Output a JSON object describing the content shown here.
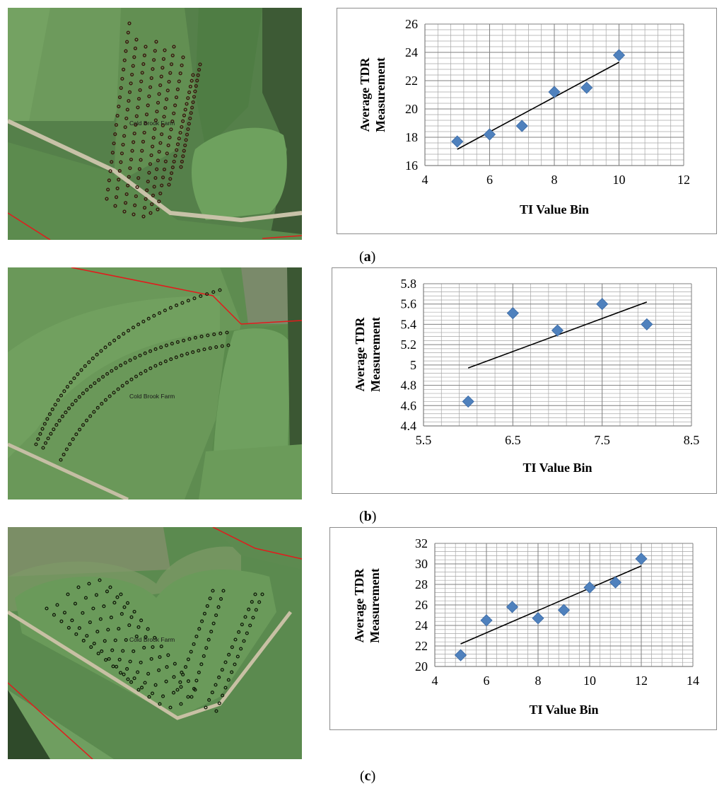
{
  "map_label": "Cold Brook Farm",
  "panel_labels": [
    "a",
    "b",
    "c"
  ],
  "colors": {
    "marker": "#4f81bd",
    "trend": "#000000",
    "grid": "#a6a6a6",
    "field": "#5a8a4e",
    "boundary": "#e31a1c"
  },
  "chart_data": [
    {
      "type": "scatter",
      "title": "",
      "xlabel": "TI Value Bin",
      "ylabel_lines": [
        "Average TDR",
        "Measurement"
      ],
      "xlim": [
        4,
        12
      ],
      "ylim": [
        16,
        26
      ],
      "xticks": [
        "4",
        "6",
        "8",
        "10",
        "12"
      ],
      "yticks": [
        "16",
        "18",
        "20",
        "22",
        "24",
        "26"
      ],
      "series": [
        {
          "x": [
            5,
            6,
            7,
            8,
            9,
            10
          ],
          "y": [
            17.7,
            18.2,
            18.8,
            21.2,
            21.5,
            23.8
          ]
        }
      ],
      "trendline": {
        "x": [
          5,
          10
        ],
        "y": [
          17.15,
          23.3
        ]
      },
      "grid": true
    },
    {
      "type": "scatter",
      "title": "",
      "xlabel": "TI Value Bin",
      "ylabel_lines": [
        "Average TDR",
        "Measurement"
      ],
      "xlim": [
        5.5,
        8.5
      ],
      "ylim": [
        4.4,
        5.8
      ],
      "xticks": [
        "5.5",
        "6.5",
        "7.5",
        "8.5"
      ],
      "yticks": [
        "4.4",
        "4.6",
        "4.8",
        "5",
        "5.2",
        "5.4",
        "5.6",
        "5.8"
      ],
      "series": [
        {
          "x": [
            6,
            6.5,
            7,
            7.5,
            8
          ],
          "y": [
            4.64,
            5.51,
            5.34,
            5.6,
            5.4
          ]
        }
      ],
      "trendline": {
        "x": [
          6,
          8
        ],
        "y": [
          4.97,
          5.62
        ]
      },
      "grid": true
    },
    {
      "type": "scatter",
      "title": "",
      "xlabel": "TI Value Bin",
      "ylabel_lines": [
        "Average TDR",
        "Measurement"
      ],
      "xlim": [
        4,
        14
      ],
      "ylim": [
        20,
        32
      ],
      "xticks": [
        "4",
        "6",
        "8",
        "10",
        "12",
        "14"
      ],
      "yticks": [
        "20",
        "22",
        "24",
        "26",
        "28",
        "30",
        "32"
      ],
      "series": [
        {
          "x": [
            5,
            6,
            7,
            8,
            9,
            10,
            11,
            12
          ],
          "y": [
            21.1,
            24.5,
            25.8,
            24.7,
            25.5,
            27.7,
            28.2,
            30.5
          ]
        }
      ],
      "trendline": {
        "x": [
          5,
          12
        ],
        "y": [
          22.2,
          29.8
        ]
      },
      "grid": true
    }
  ]
}
